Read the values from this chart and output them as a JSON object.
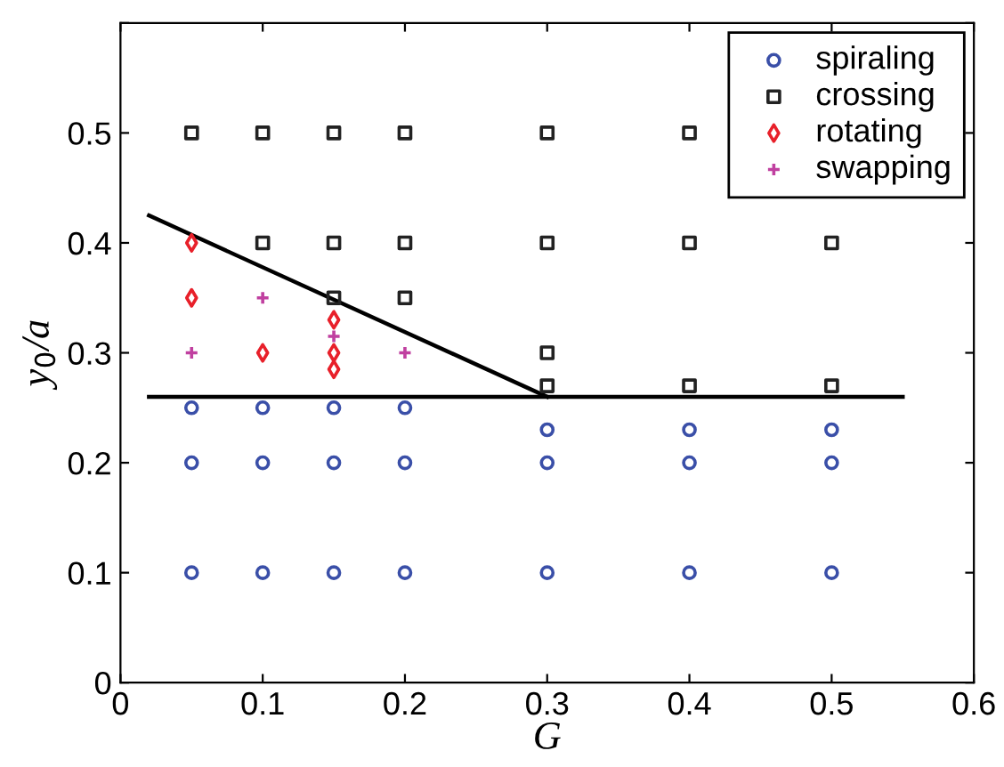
{
  "chart_data": {
    "type": "scatter",
    "xlabel": "G",
    "ylabel": "y$_{0}$/a",
    "xlim": [
      0,
      0.6
    ],
    "ylim": [
      0,
      0.6
    ],
    "xticks": [
      0,
      0.1,
      0.2,
      0.3,
      0.4,
      0.5,
      0.6
    ],
    "yticks": [
      0,
      0.1,
      0.2,
      0.3,
      0.4,
      0.5,
      {
        "value": 0.6,
        "label": null
      }
    ],
    "legend": "top right",
    "grid": false,
    "series": [
      {
        "name": "spiraling",
        "color": "#3a4fa8",
        "marker": "circle",
        "x": [
          0.05,
          0.05,
          0.05,
          0.1,
          0.1,
          0.1,
          0.15,
          0.15,
          0.15,
          0.2,
          0.2,
          0.2,
          0.3,
          0.3,
          0.3,
          0.4,
          0.4,
          0.4,
          0.5,
          0.5,
          0.5
        ],
        "values": [
          0.1,
          0.2,
          0.25,
          0.1,
          0.2,
          0.25,
          0.1,
          0.2,
          0.25,
          0.1,
          0.2,
          0.25,
          0.1,
          0.2,
          0.23,
          0.1,
          0.2,
          0.23,
          0.1,
          0.2,
          0.23
        ]
      },
      {
        "name": "crossing",
        "color": "#222222",
        "marker": "square",
        "x": [
          0.05,
          0.1,
          0.1,
          0.15,
          0.15,
          0.15,
          0.2,
          0.2,
          0.2,
          0.3,
          0.3,
          0.3,
          0.3,
          0.4,
          0.4,
          0.4,
          0.5,
          0.5
        ],
        "values": [
          0.5,
          0.5,
          0.4,
          0.5,
          0.4,
          0.35,
          0.5,
          0.4,
          0.35,
          0.5,
          0.4,
          0.3,
          0.27,
          0.5,
          0.4,
          0.27,
          0.4,
          0.27
        ]
      },
      {
        "name": "rotating",
        "color": "#e8202a",
        "marker": "diamond",
        "x": [
          0.05,
          0.05,
          0.1,
          0.15,
          0.15,
          0.15
        ],
        "values": [
          0.4,
          0.35,
          0.3,
          0.33,
          0.3,
          0.285
        ]
      },
      {
        "name": "swapping",
        "color": "#c040a0",
        "marker": "cross",
        "x": [
          0.05,
          0.1,
          0.15,
          0.2
        ],
        "values": [
          0.3,
          0.35,
          0.315,
          0.3
        ]
      },
      {
        "type": "line",
        "color": "#000000",
        "line_style": "solid",
        "marker": "none",
        "x": [
          0.02,
          0.3
        ],
        "values": [
          0.425,
          0.26
        ]
      },
      {
        "type": "line",
        "color": "#000000",
        "line_style": "solid",
        "marker": "none",
        "x": [
          0.02,
          0.55
        ],
        "values": [
          0.26,
          0.26
        ]
      }
    ]
  }
}
